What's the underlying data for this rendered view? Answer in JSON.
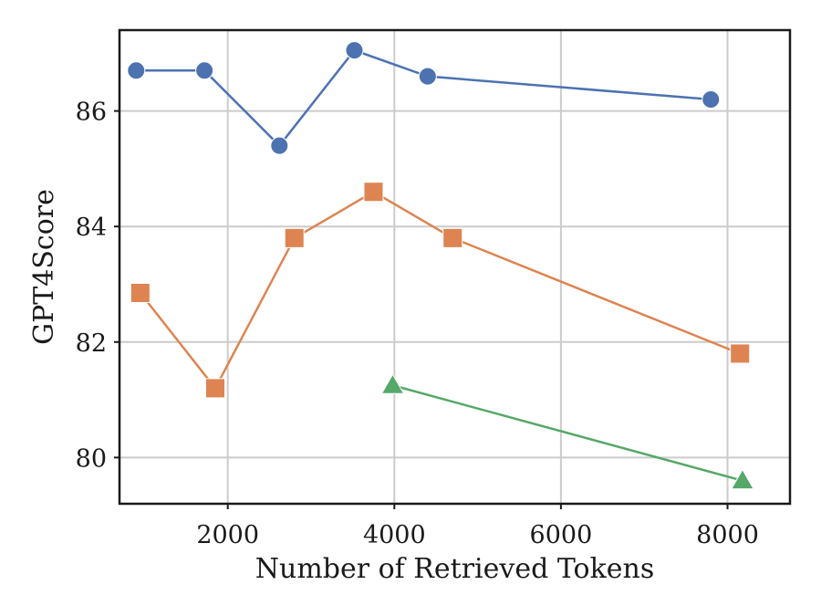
{
  "chart_data": {
    "type": "line",
    "title": "",
    "xlabel": "Number of Retrieved Tokens",
    "ylabel": "GPT4Score",
    "xlim": [
      700,
      8750
    ],
    "ylim": [
      79.2,
      87.4
    ],
    "xticks": [
      2000,
      4000,
      6000,
      8000
    ],
    "yticks": [
      80,
      82,
      84,
      86
    ],
    "grid": true,
    "legend": "none",
    "series": [
      {
        "marker": "circle",
        "color": "#4c72b0",
        "points": [
          [
            900,
            86.7
          ],
          [
            1720,
            86.7
          ],
          [
            2620,
            85.4
          ],
          [
            3520,
            87.05
          ],
          [
            4400,
            86.6
          ],
          [
            7800,
            86.2
          ]
        ]
      },
      {
        "marker": "square",
        "color": "#dd8452",
        "points": [
          [
            950,
            82.85
          ],
          [
            1850,
            81.2
          ],
          [
            2800,
            83.8
          ],
          [
            3750,
            84.6
          ],
          [
            4700,
            83.8
          ],
          [
            8150,
            81.8
          ]
        ]
      },
      {
        "marker": "triangle",
        "color": "#55a868",
        "points": [
          [
            3980,
            81.25
          ],
          [
            8180,
            79.6
          ]
        ]
      }
    ]
  }
}
